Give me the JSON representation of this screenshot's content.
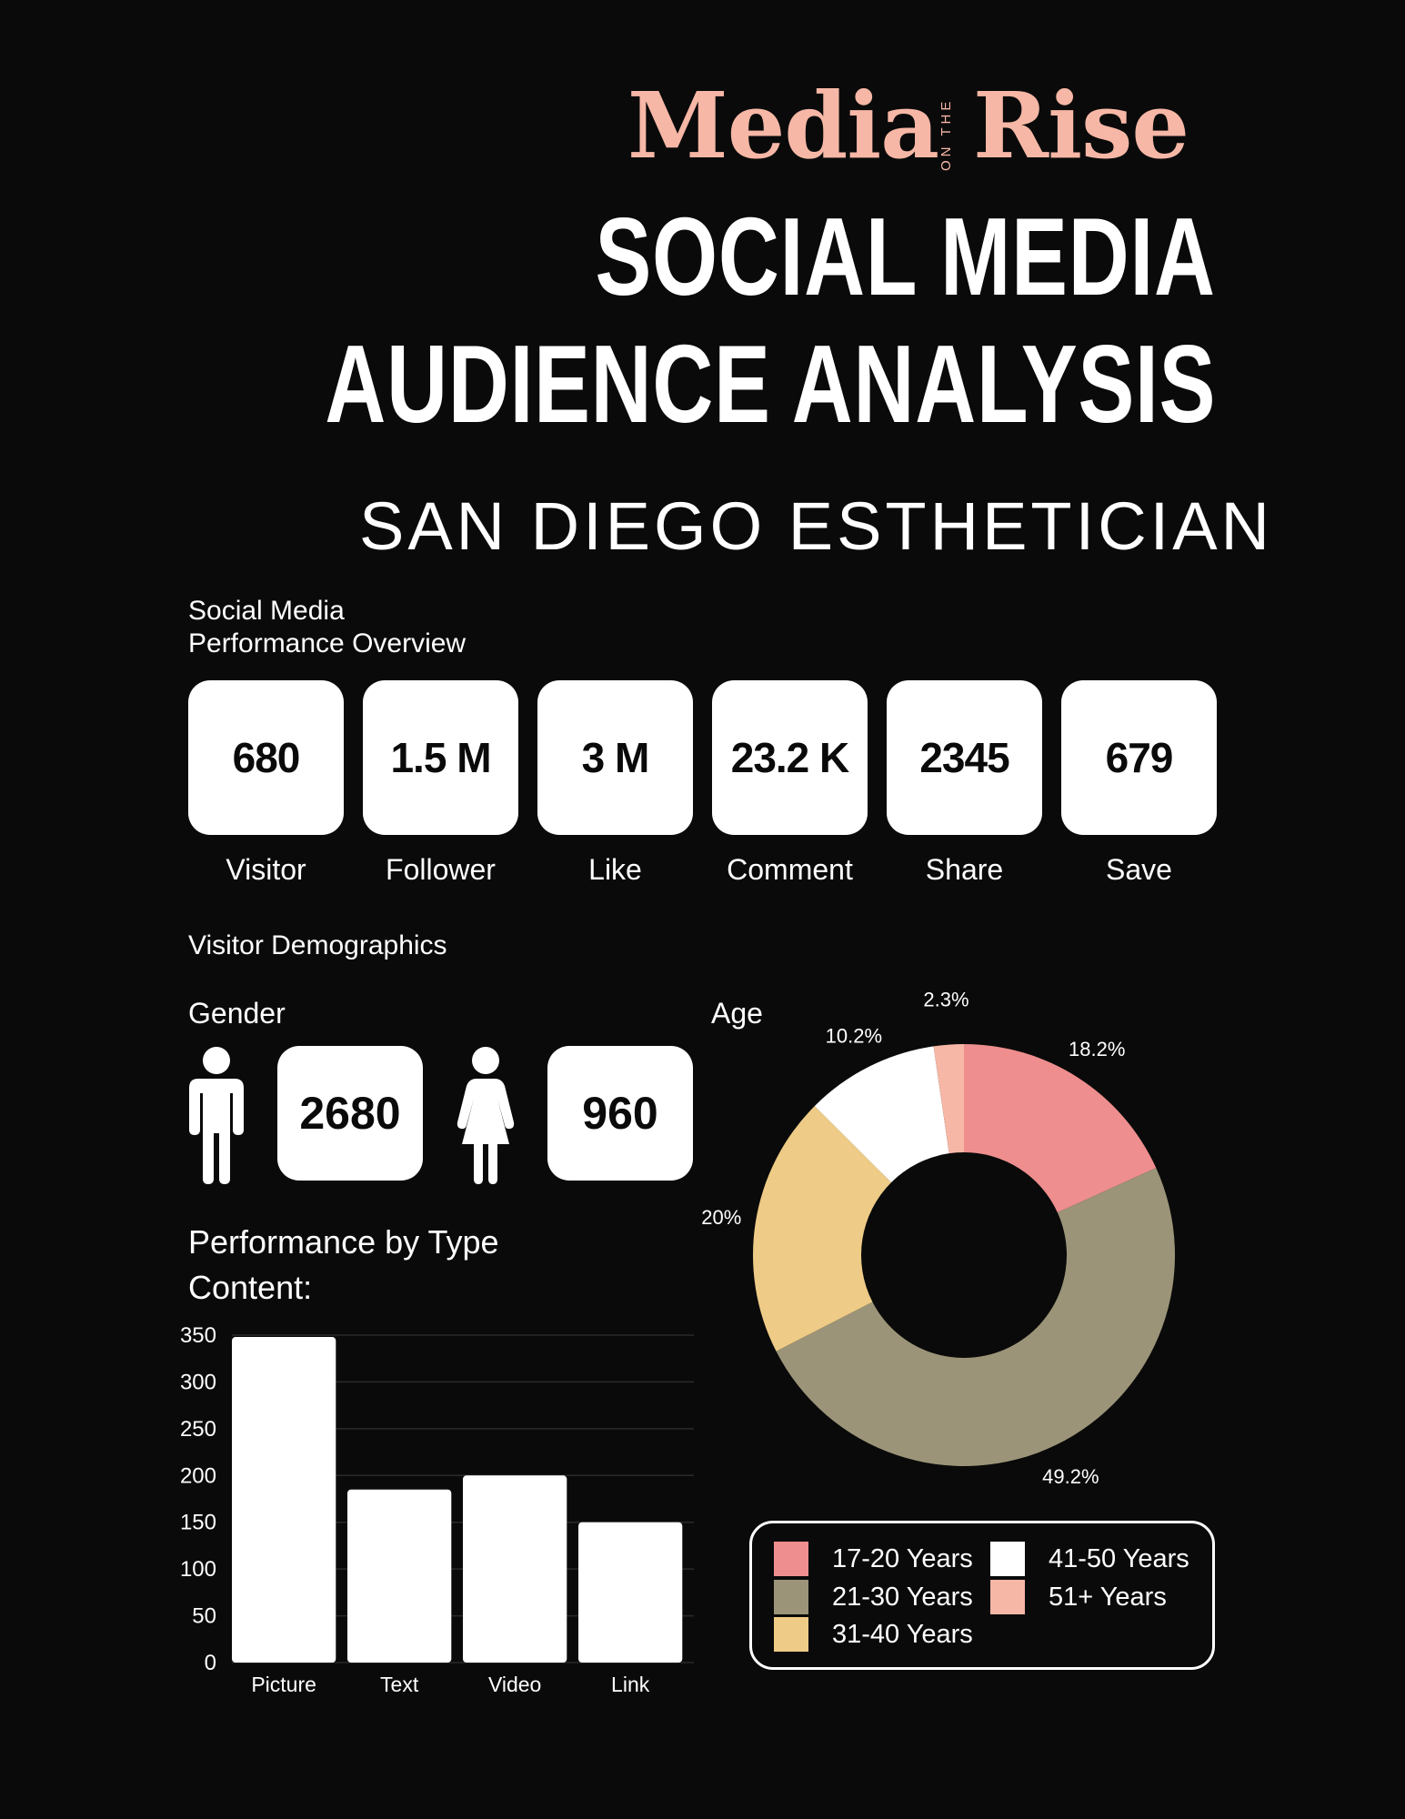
{
  "brand": {
    "word1": "Media",
    "small": "ON THE",
    "word2": "Rise"
  },
  "title": {
    "line1": "SOCIAL MEDIA",
    "line2": "AUDIENCE ANALYSIS",
    "subtitle": "SAN DIEGO ESTHETICIAN"
  },
  "overview": {
    "heading_line1": "Social Media",
    "heading_line2": "Performance Overview",
    "stats": [
      {
        "value": "680",
        "label": "Visitor"
      },
      {
        "value": "1.5 M",
        "label": "Follower"
      },
      {
        "value": "3 M",
        "label": "Like"
      },
      {
        "value": "23.2 K",
        "label": "Comment"
      },
      {
        "value": "2345",
        "label": "Share"
      },
      {
        "value": "679",
        "label": "Save"
      }
    ]
  },
  "demographics": {
    "heading": "Visitor Demographics",
    "gender_heading": "Gender",
    "male_value": "2680",
    "female_value": "960",
    "age_heading": "Age",
    "male_icon": "male-person-icon",
    "female_icon": "female-person-icon"
  },
  "performance": {
    "heading_line1": "Performance by Type",
    "heading_line2": "Content:"
  },
  "chart_data": [
    {
      "type": "bar",
      "categories": [
        "Picture",
        "Text",
        "Video",
        "Link"
      ],
      "values": [
        348,
        185,
        200,
        150
      ],
      "yticks": [
        0,
        50,
        100,
        150,
        200,
        250,
        300,
        350
      ],
      "ylim": [
        0,
        350
      ],
      "grid": true,
      "bar_color": "#ffffff",
      "grid_color": "#2a2a2a"
    },
    {
      "type": "pie",
      "style": "donut",
      "categories": [
        "17-20 Years",
        "21-30 Years",
        "31-40 Years",
        "41-50 Years",
        "51+ Years"
      ],
      "values": [
        18.2,
        49.2,
        20,
        10.2,
        2.3
      ],
      "labels": [
        "18.2%",
        "49.2%",
        "20%",
        "10.2%",
        "2.3%"
      ],
      "colors": [
        "#ee8e8e",
        "#9b9478",
        "#eecb86",
        "#ffffff",
        "#f6b7a6"
      ],
      "legend_position": "bottom"
    }
  ],
  "colors": {
    "background": "#0a0a0a",
    "accent": "#f6b7a6"
  }
}
